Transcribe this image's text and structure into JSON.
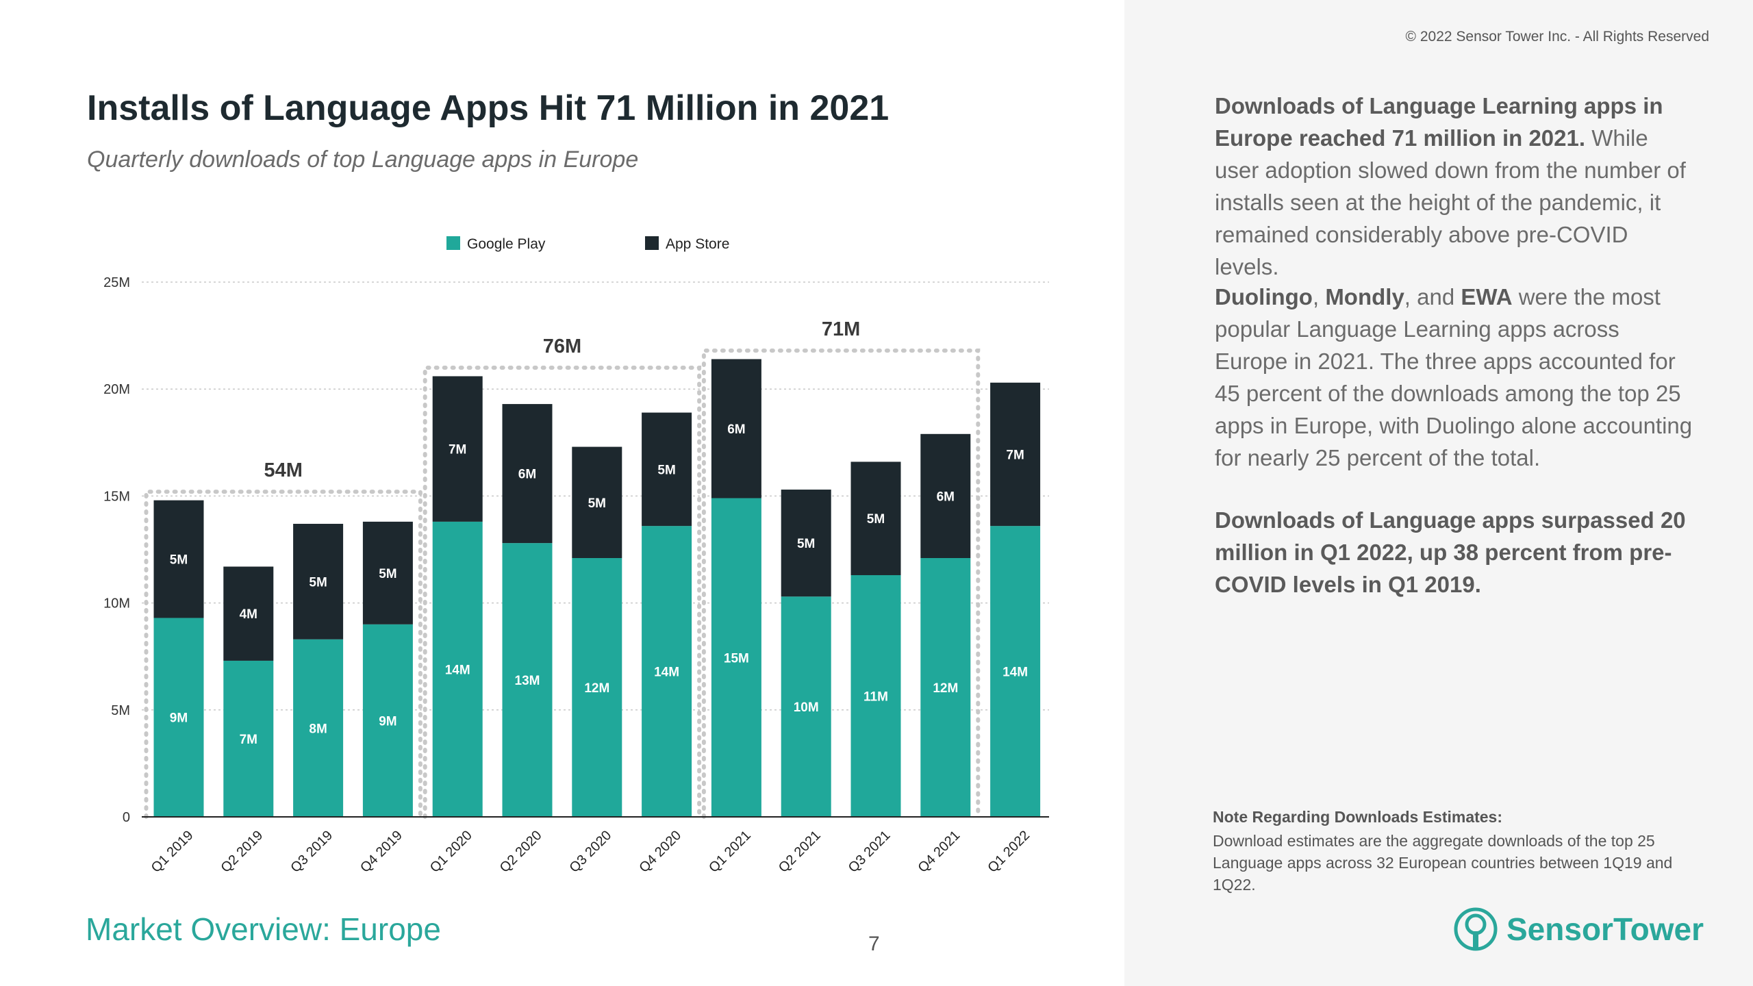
{
  "title": "Installs of Language Apps Hit 71 Million in 2021",
  "subtitle": "Quarterly downloads of top Language apps in Europe",
  "copyright": "© 2022 Sensor Tower Inc. - All Rights Reserved",
  "right_panel": {
    "p1_bold": "Downloads of Language Learning apps in Europe reached 71 million in 2021.",
    "p1_rest": " While user adoption slowed down from the number of installs seen at the height of the pandemic, it remained considerably above pre-COVID levels.",
    "p2_b1": "Duolingo",
    "p2_s1": ", ",
    "p2_b2": "Mondly",
    "p2_s2": ", and ",
    "p2_b3": "EWA",
    "p2_rest": " were the most popular Language Learning apps across Europe in 2021. The three apps accounted for 45 percent of the downloads among the top 25 apps in Europe, with Duolingo alone accounting for nearly 25 percent of the total.",
    "p3_bold": "Downloads of Language apps surpassed 20 million in Q1 2022, up 38 percent from pre-COVID levels in Q1 2019."
  },
  "note": {
    "title": "Note Regarding Downloads Estimates:",
    "body": "Download estimates are the aggregate downloads of the top 25 Language apps across 32 European countries between 1Q19 and 1Q22."
  },
  "footer": {
    "section": "Market Overview: Europe",
    "page": "7",
    "brand": "SensorTower"
  },
  "colors": {
    "google_play": "#20a89a",
    "app_store": "#1d282e",
    "accent": "#2aa79b",
    "group_box": "#c8c8c8"
  },
  "chart_data": {
    "type": "bar",
    "stacked": true,
    "categories": [
      "Q1 2019",
      "Q2 2019",
      "Q3 2019",
      "Q4 2019",
      "Q1 2020",
      "Q2 2020",
      "Q3 2020",
      "Q4 2020",
      "Q1 2021",
      "Q2 2021",
      "Q3 2021",
      "Q4 2021",
      "Q1 2022"
    ],
    "series": [
      {
        "name": "Google Play",
        "color": "#20a89a",
        "values": [
          9.3,
          7.3,
          8.3,
          9.0,
          13.8,
          12.8,
          12.1,
          13.6,
          14.9,
          10.3,
          11.3,
          12.1,
          13.6
        ],
        "labels": [
          "9M",
          "7M",
          "8M",
          "9M",
          "14M",
          "13M",
          "12M",
          "14M",
          "15M",
          "10M",
          "11M",
          "12M",
          "14M"
        ]
      },
      {
        "name": "App Store",
        "color": "#1d282e",
        "values": [
          5.5,
          4.4,
          5.4,
          4.8,
          6.8,
          6.5,
          5.2,
          5.3,
          6.5,
          5.0,
          5.3,
          5.8,
          6.7
        ],
        "labels": [
          "5M",
          "4M",
          "5M",
          "5M",
          "7M",
          "6M",
          "5M",
          "5M",
          "6M",
          "5M",
          "5M",
          "6M",
          "7M"
        ]
      }
    ],
    "ylim": [
      0,
      25
    ],
    "yticks": [
      0,
      5,
      10,
      15,
      20,
      25
    ],
    "ytick_labels": [
      "0",
      "5M",
      "10M",
      "15M",
      "20M",
      "25M"
    ],
    "grid": true,
    "legend": "top-center",
    "annotations": [
      {
        "label": "54M",
        "start": 0,
        "end": 3,
        "level": 15.2
      },
      {
        "label": "76M",
        "start": 4,
        "end": 7,
        "level": 21.0
      },
      {
        "label": "71M",
        "start": 8,
        "end": 11,
        "level": 21.8
      }
    ]
  }
}
